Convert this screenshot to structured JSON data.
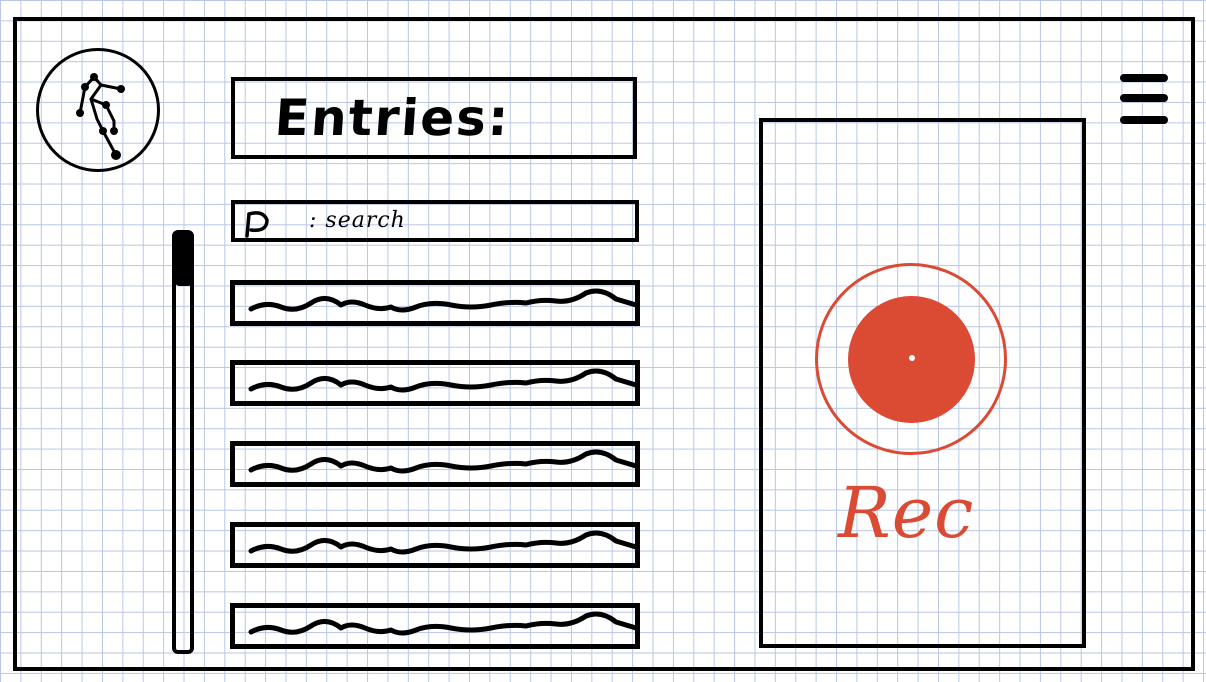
{
  "header": {
    "title": "Entries:",
    "logo_icon": "stick-figure-icon",
    "menu_icon": "hamburger-menu-icon"
  },
  "search": {
    "icon": "search-icon",
    "label": ": search"
  },
  "entries": {
    "row_count": 5,
    "row_content": "scribbled-placeholder-text"
  },
  "recorder": {
    "label": "Rec",
    "accent_color": "#db4a33",
    "icon": "record-button-icon"
  }
}
